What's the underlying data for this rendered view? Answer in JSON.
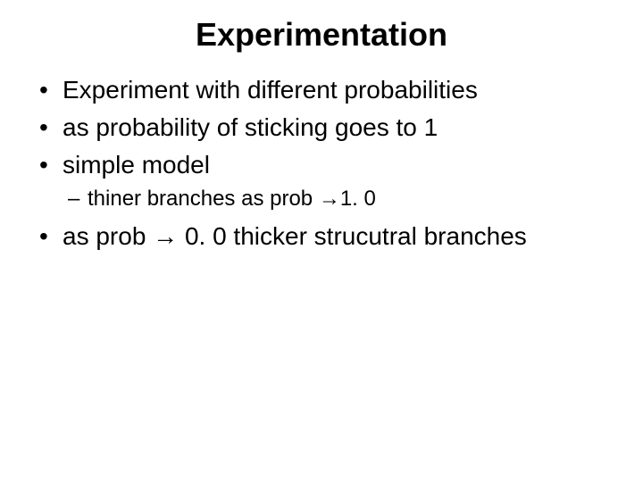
{
  "title": "Experimentation",
  "bullets": {
    "b1": "Experiment with different probabilities",
    "b2": "as probability of sticking goes to 1",
    "b3": "simple model",
    "b3_sub1_pre": "thiner branches as prob ",
    "b3_sub1_arrow": "→",
    "b3_sub1_post": "1. 0",
    "b4_pre": "as prob ",
    "b4_arrow": "→",
    "b4_post": " 0. 0 thicker strucutral branches"
  }
}
